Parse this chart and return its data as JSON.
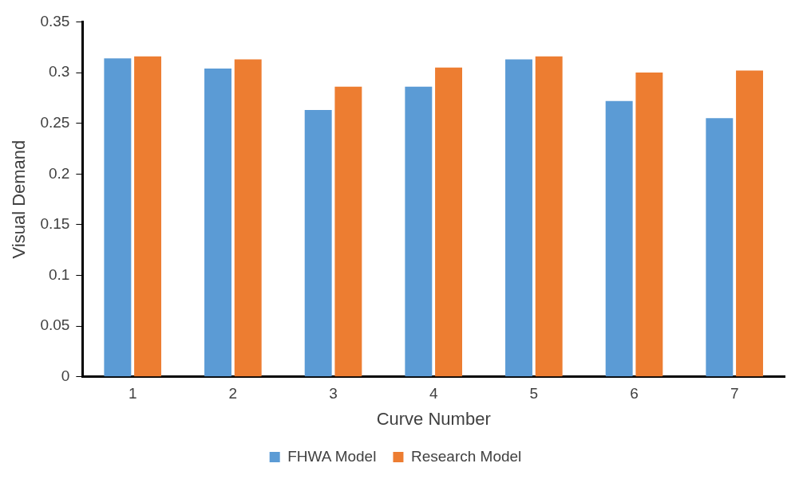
{
  "chart_data": {
    "type": "bar",
    "xlabel": "Curve Number",
    "ylabel": "Visual Demand",
    "categories": [
      "1",
      "2",
      "3",
      "4",
      "5",
      "6",
      "7"
    ],
    "series": [
      {
        "name": "FHWA Model",
        "color": "#5b9bd5",
        "values": [
          0.314,
          0.304,
          0.263,
          0.286,
          0.313,
          0.272,
          0.255
        ]
      },
      {
        "name": "Research Model",
        "color": "#ed7d31",
        "values": [
          0.316,
          0.313,
          0.286,
          0.305,
          0.316,
          0.3,
          0.302
        ]
      }
    ],
    "ylim": [
      0,
      0.35
    ],
    "yticks": [
      0,
      0.05,
      0.1,
      0.15,
      0.2,
      0.25,
      0.3,
      0.35
    ],
    "grid": false,
    "legend": "bottom"
  }
}
